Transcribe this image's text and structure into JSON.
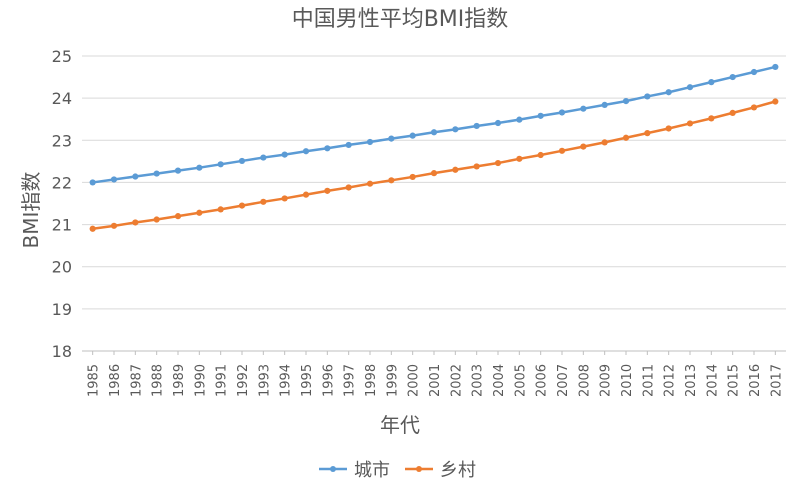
{
  "chart_data": {
    "type": "line",
    "title": "中国男性平均BMI指数",
    "xlabel": "年代",
    "ylabel": "BMI指数",
    "ylim": [
      18,
      25
    ],
    "yticks": [
      "18",
      "19",
      "20",
      "21",
      "22",
      "23",
      "24",
      "25"
    ],
    "grid": true,
    "legend_position": "bottom",
    "x": [
      1985,
      1986,
      1987,
      1988,
      1989,
      1990,
      1991,
      1992,
      1993,
      1994,
      1995,
      1996,
      1997,
      1998,
      1999,
      2000,
      2001,
      2002,
      2003,
      2004,
      2005,
      2006,
      2007,
      2008,
      2009,
      2010,
      2011,
      2012,
      2013,
      2014,
      2015,
      2016,
      2017
    ],
    "x_labels": [
      "1985",
      "1986",
      "1987",
      "1988",
      "1989",
      "1990",
      "1991",
      "1992",
      "1993",
      "1994",
      "1995",
      "1996",
      "1997",
      "1998",
      "1999",
      "2000",
      "2001",
      "2002",
      "2003",
      "2004",
      "2005",
      "2006",
      "2007",
      "2008",
      "2009",
      "2010",
      "2011",
      "2012",
      "2013",
      "2014",
      "2015",
      "2016",
      "2017"
    ],
    "series": [
      {
        "name": "城市",
        "color": "#5B9BD5",
        "values": [
          22.0,
          22.07,
          22.14,
          22.21,
          22.28,
          22.35,
          22.43,
          22.51,
          22.59,
          22.66,
          22.74,
          22.81,
          22.89,
          22.96,
          23.04,
          23.11,
          23.19,
          23.26,
          23.34,
          23.41,
          23.49,
          23.58,
          23.66,
          23.75,
          23.84,
          23.93,
          24.04,
          24.14,
          24.26,
          24.38,
          24.5,
          24.62,
          24.74
        ]
      },
      {
        "name": "乡村",
        "color": "#ED7D31",
        "values": [
          20.9,
          20.97,
          21.05,
          21.12,
          21.2,
          21.28,
          21.36,
          21.45,
          21.54,
          21.62,
          21.71,
          21.8,
          21.88,
          21.97,
          22.05,
          22.13,
          22.22,
          22.3,
          22.38,
          22.46,
          22.56,
          22.65,
          22.75,
          22.85,
          22.95,
          23.06,
          23.17,
          23.28,
          23.4,
          23.52,
          23.65,
          23.78,
          23.92
        ]
      }
    ]
  }
}
